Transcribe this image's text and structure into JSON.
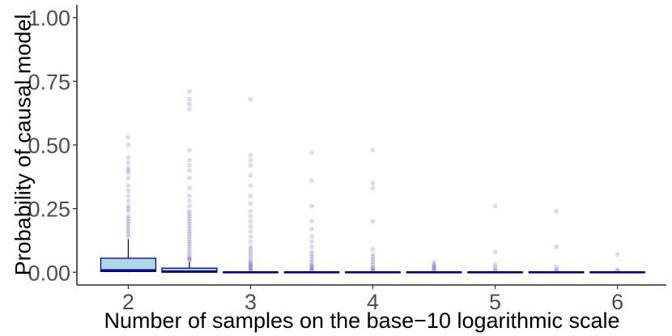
{
  "chart_data": {
    "type": "box",
    "title": "",
    "xlabel": "Number of samples on the base−10 logarithmic scale",
    "ylabel": "Probability of causal model",
    "xlim": [
      1.58,
      6.4
    ],
    "ylim": [
      -0.05,
      1.05
    ],
    "x_ticks": [
      2,
      3,
      4,
      5,
      6
    ],
    "x_tick_labels": [
      "2",
      "3",
      "4",
      "5",
      "6"
    ],
    "y_ticks": [
      0.0,
      0.25,
      0.5,
      0.75,
      1.0
    ],
    "y_tick_labels": [
      "0.00",
      "0.25",
      "0.50",
      "0.75",
      "1.00"
    ],
    "grid": false,
    "colors": {
      "box_fill": "#add8e6",
      "box_line": "#00008b",
      "outlier": "#00008b"
    },
    "boxes": [
      {
        "x": 2.0,
        "q1": 0.003,
        "median": 0.008,
        "q3": 0.055,
        "whisker_low": 0.0,
        "whisker_high": 0.13,
        "outliers": [
          0.14,
          0.15,
          0.16,
          0.17,
          0.18,
          0.19,
          0.2,
          0.21,
          0.22,
          0.24,
          0.25,
          0.26,
          0.28,
          0.3,
          0.32,
          0.34,
          0.37,
          0.39,
          0.4,
          0.41,
          0.43,
          0.45,
          0.5,
          0.53
        ]
      },
      {
        "x": 2.5,
        "q1": 0.0,
        "median": 0.003,
        "q3": 0.016,
        "whisker_low": 0.0,
        "whisker_high": 0.04,
        "outliers": [
          0.045,
          0.05,
          0.055,
          0.06,
          0.07,
          0.08,
          0.09,
          0.1,
          0.11,
          0.12,
          0.13,
          0.14,
          0.15,
          0.16,
          0.17,
          0.18,
          0.19,
          0.2,
          0.21,
          0.22,
          0.23,
          0.24,
          0.26,
          0.28,
          0.3,
          0.33,
          0.37,
          0.4,
          0.42,
          0.44,
          0.48,
          0.64,
          0.66,
          0.68,
          0.71
        ]
      },
      {
        "x": 3.0,
        "q1": 0.0,
        "median": 0.0,
        "q3": 0.0,
        "whisker_low": 0.0,
        "whisker_high": 0.0,
        "outliers": [
          0.005,
          0.01,
          0.015,
          0.02,
          0.025,
          0.03,
          0.035,
          0.04,
          0.05,
          0.06,
          0.07,
          0.08,
          0.09,
          0.1,
          0.12,
          0.14,
          0.16,
          0.18,
          0.2,
          0.22,
          0.24,
          0.27,
          0.3,
          0.34,
          0.38,
          0.42,
          0.44,
          0.46,
          0.68
        ]
      },
      {
        "x": 3.5,
        "q1": 0.0,
        "median": 0.0,
        "q3": 0.0,
        "whisker_low": 0.0,
        "whisker_high": 0.0,
        "outliers": [
          0.005,
          0.01,
          0.015,
          0.02,
          0.025,
          0.03,
          0.04,
          0.05,
          0.06,
          0.07,
          0.08,
          0.1,
          0.12,
          0.14,
          0.17,
          0.2,
          0.26,
          0.36,
          0.47
        ]
      },
      {
        "x": 4.0,
        "q1": 0.0,
        "median": 0.0,
        "q3": 0.0,
        "whisker_low": 0.0,
        "whisker_high": 0.0,
        "outliers": [
          0.005,
          0.01,
          0.015,
          0.02,
          0.03,
          0.04,
          0.05,
          0.06,
          0.07,
          0.09,
          0.2,
          0.33,
          0.35,
          0.48
        ]
      },
      {
        "x": 4.5,
        "q1": 0.0,
        "median": 0.0,
        "q3": 0.0,
        "whisker_low": 0.0,
        "whisker_high": 0.0,
        "outliers": [
          0.005,
          0.01,
          0.015,
          0.02,
          0.025,
          0.03,
          0.04
        ]
      },
      {
        "x": 5.0,
        "q1": 0.0,
        "median": 0.0,
        "q3": 0.0,
        "whisker_low": 0.0,
        "whisker_high": 0.0,
        "outliers": [
          0.005,
          0.01,
          0.02,
          0.03,
          0.08,
          0.26
        ]
      },
      {
        "x": 5.5,
        "q1": 0.0,
        "median": 0.0,
        "q3": 0.0,
        "whisker_low": 0.0,
        "whisker_high": 0.0,
        "outliers": [
          0.005,
          0.01,
          0.02,
          0.1,
          0.24
        ]
      },
      {
        "x": 6.0,
        "q1": 0.0,
        "median": 0.0,
        "q3": 0.0,
        "whisker_low": 0.0,
        "whisker_high": 0.0,
        "outliers": [
          0.005,
          0.01,
          0.07
        ]
      }
    ]
  }
}
